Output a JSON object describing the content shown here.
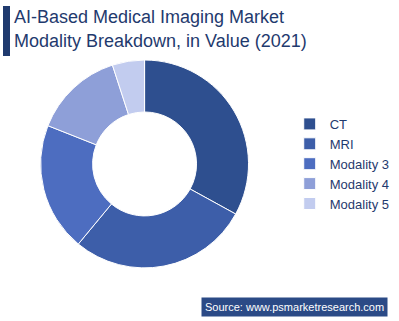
{
  "chart_data": {
    "type": "donut",
    "title": "AI-Based Medical Imaging Market\nModality Breakdown, in Value (2021)",
    "categories": [
      "CT",
      "MRI",
      "Modality 3",
      "Modality 4",
      "Modality 5"
    ],
    "values": [
      33,
      28,
      20,
      14,
      5
    ],
    "colors": [
      "#2e4f8f",
      "#3d5ea9",
      "#4d6dc0",
      "#8e9fd8",
      "#c2ccef"
    ],
    "legend": "right",
    "data_labels": false,
    "annotations": [
      "Source: www.psmarketresearch.com"
    ]
  }
}
